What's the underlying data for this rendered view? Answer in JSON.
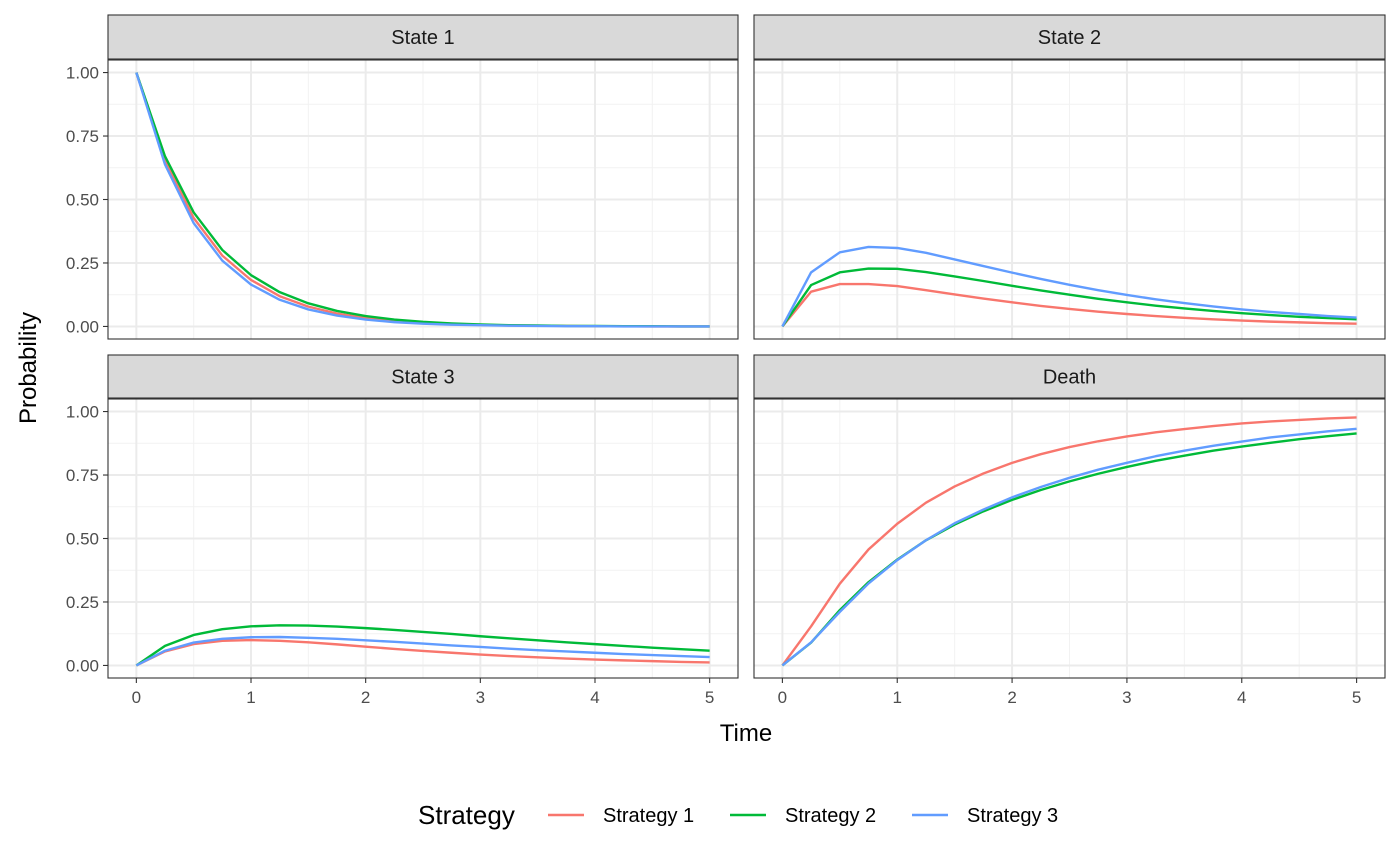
{
  "chart_data": {
    "type": "line",
    "facet_layout": "2x2",
    "xlabel": "Time",
    "ylabel": "Probability",
    "xlim": [
      0,
      5
    ],
    "ylim": [
      0,
      1
    ],
    "x_ticks": [
      "0",
      "1",
      "2",
      "3",
      "4",
      "5"
    ],
    "y_ticks": [
      "0.00",
      "0.25",
      "0.50",
      "0.75",
      "1.00"
    ],
    "grid": true,
    "legend": {
      "title": "Strategy",
      "placement": "bottom",
      "entries": [
        "Strategy 1",
        "Strategy 2",
        "Strategy 3"
      ]
    },
    "colors": {
      "Strategy 1": "#F8766D",
      "Strategy 2": "#00BA38",
      "Strategy 3": "#619CFF"
    },
    "x": [
      0,
      0.25,
      0.5,
      0.75,
      1,
      1.25,
      1.5,
      1.75,
      2,
      2.25,
      2.5,
      2.75,
      3,
      3.25,
      3.5,
      3.75,
      4,
      4.25,
      4.5,
      4.75,
      5
    ],
    "panels": [
      {
        "title": "State 1",
        "series": [
          {
            "name": "Strategy 1",
            "values": [
              1.0,
              0.654,
              0.427,
              0.279,
              0.183,
              0.119,
              0.078,
              0.051,
              0.033,
              0.022,
              0.014,
              0.009,
              0.006,
              0.004,
              0.003,
              0.002,
              0.001,
              0.001,
              0.0,
              0.0,
              0.0
            ]
          },
          {
            "name": "Strategy 2",
            "values": [
              1.0,
              0.67,
              0.449,
              0.301,
              0.202,
              0.135,
              0.091,
              0.061,
              0.041,
              0.027,
              0.018,
              0.012,
              0.008,
              0.005,
              0.004,
              0.002,
              0.002,
              0.001,
              0.001,
              0.0,
              0.0
            ]
          },
          {
            "name": "Strategy 3",
            "values": [
              1.0,
              0.638,
              0.407,
              0.259,
              0.165,
              0.105,
              0.067,
              0.043,
              0.027,
              0.017,
              0.011,
              0.007,
              0.005,
              0.003,
              0.002,
              0.001,
              0.001,
              0.0,
              0.0,
              0.0,
              0.0
            ]
          }
        ]
      },
      {
        "title": "State 2",
        "series": [
          {
            "name": "Strategy 1",
            "values": [
              0.0,
              0.137,
              0.167,
              0.167,
              0.159,
              0.143,
              0.126,
              0.11,
              0.095,
              0.081,
              0.069,
              0.058,
              0.049,
              0.041,
              0.034,
              0.028,
              0.023,
              0.019,
              0.016,
              0.013,
              0.011
            ]
          },
          {
            "name": "Strategy 2",
            "values": [
              0.0,
              0.163,
              0.213,
              0.228,
              0.227,
              0.214,
              0.197,
              0.179,
              0.16,
              0.142,
              0.125,
              0.109,
              0.095,
              0.082,
              0.071,
              0.061,
              0.052,
              0.045,
              0.038,
              0.033,
              0.028
            ]
          },
          {
            "name": "Strategy 3",
            "values": [
              0.0,
              0.213,
              0.292,
              0.313,
              0.309,
              0.29,
              0.264,
              0.238,
              0.212,
              0.187,
              0.164,
              0.143,
              0.124,
              0.107,
              0.092,
              0.079,
              0.067,
              0.057,
              0.049,
              0.041,
              0.035
            ]
          }
        ]
      },
      {
        "title": "State 3",
        "series": [
          {
            "name": "Strategy 1",
            "values": [
              0.0,
              0.055,
              0.084,
              0.097,
              0.1,
              0.097,
              0.091,
              0.083,
              0.074,
              0.065,
              0.057,
              0.05,
              0.043,
              0.037,
              0.032,
              0.027,
              0.023,
              0.02,
              0.017,
              0.014,
              0.012
            ]
          },
          {
            "name": "Strategy 2",
            "values": [
              0.0,
              0.077,
              0.12,
              0.143,
              0.154,
              0.158,
              0.157,
              0.153,
              0.147,
              0.14,
              0.132,
              0.124,
              0.115,
              0.107,
              0.099,
              0.091,
              0.084,
              0.077,
              0.07,
              0.064,
              0.058
            ]
          },
          {
            "name": "Strategy 3",
            "values": [
              0.0,
              0.058,
              0.09,
              0.105,
              0.111,
              0.112,
              0.109,
              0.105,
              0.099,
              0.093,
              0.086,
              0.079,
              0.073,
              0.066,
              0.06,
              0.055,
              0.05,
              0.045,
              0.041,
              0.037,
              0.033
            ]
          }
        ]
      },
      {
        "title": "Death",
        "series": [
          {
            "name": "Strategy 1",
            "values": [
              0.0,
              0.154,
              0.322,
              0.457,
              0.558,
              0.641,
              0.705,
              0.756,
              0.798,
              0.832,
              0.86,
              0.883,
              0.902,
              0.918,
              0.931,
              0.943,
              0.953,
              0.961,
              0.967,
              0.973,
              0.977
            ]
          },
          {
            "name": "Strategy 2",
            "values": [
              0.0,
              0.09,
              0.218,
              0.328,
              0.417,
              0.493,
              0.555,
              0.607,
              0.652,
              0.691,
              0.725,
              0.755,
              0.782,
              0.806,
              0.826,
              0.846,
              0.862,
              0.877,
              0.891,
              0.903,
              0.914
            ]
          },
          {
            "name": "Strategy 3",
            "values": [
              0.0,
              0.091,
              0.211,
              0.323,
              0.415,
              0.493,
              0.56,
              0.614,
              0.662,
              0.703,
              0.739,
              0.771,
              0.798,
              0.824,
              0.846,
              0.865,
              0.882,
              0.898,
              0.91,
              0.922,
              0.932
            ]
          }
        ]
      }
    ]
  }
}
